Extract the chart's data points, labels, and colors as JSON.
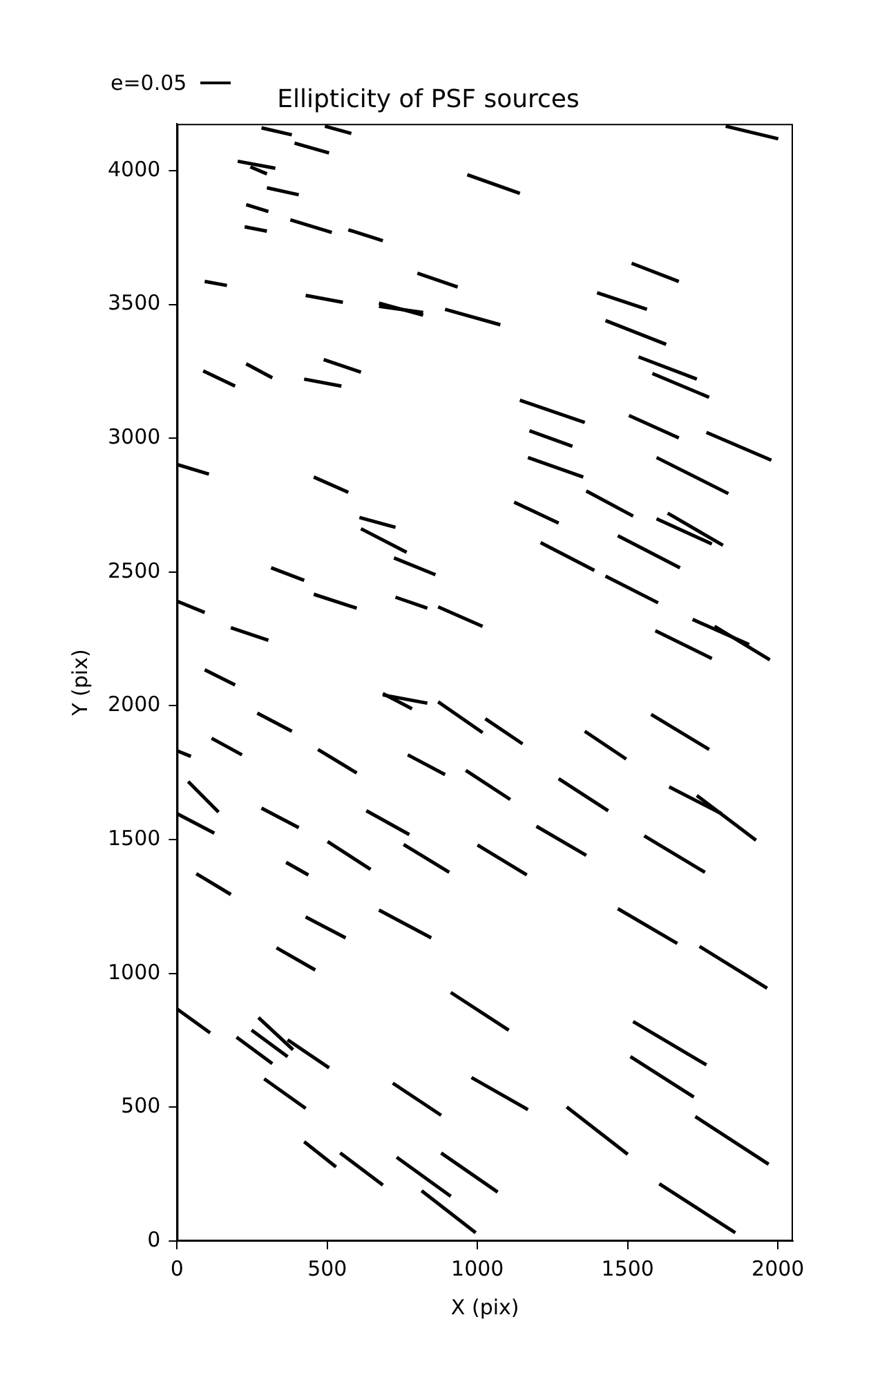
{
  "chart_data": {
    "type": "line",
    "title": "Ellipticity of PSF sources",
    "xlabel": "X (pix)",
    "ylabel": "Y (pix)",
    "annotations": [
      "e=0.05"
    ],
    "xlim": [
      0,
      2050
    ],
    "ylim": [
      0,
      4175
    ],
    "xticks": [
      0,
      500,
      1000,
      1500,
      2000
    ],
    "yticks": [
      0,
      500,
      1000,
      1500,
      2000,
      2500,
      3000,
      3500,
      4000
    ],
    "grid": false,
    "marker": "none",
    "line_style": "solid",
    "series": [
      {
        "color": "#000000",
        "x": [
          281,
          382
        ],
        "values": [
          4160,
          4134
        ]
      },
      {
        "color": "#000000",
        "x": [
          492,
          580
        ],
        "values": [
          4166,
          4139
        ]
      },
      {
        "color": "#000000",
        "x": [
          391,
          506
        ],
        "values": [
          4103,
          4066
        ]
      },
      {
        "color": "#000000",
        "x": [
          202,
          327
        ],
        "values": [
          4035,
          4009
        ]
      },
      {
        "color": "#000000",
        "x": [
          244,
          299
        ],
        "values": [
          4014,
          3988
        ]
      },
      {
        "color": "#000000",
        "x": [
          299,
          405
        ],
        "values": [
          3936,
          3910
        ]
      },
      {
        "color": "#000000",
        "x": [
          230,
          304
        ],
        "values": [
          3873,
          3847
        ]
      },
      {
        "color": "#000000",
        "x": [
          225,
          299
        ],
        "values": [
          3790,
          3774
        ]
      },
      {
        "color": "#000000",
        "x": [
          377,
          515
        ],
        "values": [
          3816,
          3769
        ]
      },
      {
        "color": "#000000",
        "x": [
          570,
          685
        ],
        "values": [
          3779,
          3738
        ]
      },
      {
        "color": "#000000",
        "x": [
          966,
          1141
        ],
        "values": [
          3985,
          3915
        ]
      },
      {
        "color": "#000000",
        "x": [
          1826,
          2001
        ],
        "values": [
          4166,
          4119
        ]
      },
      {
        "color": "#000000",
        "x": [
          92,
          166
        ],
        "values": [
          3586,
          3571
        ]
      },
      {
        "color": "#000000",
        "x": [
          800,
          934
        ],
        "values": [
          3617,
          3565
        ]
      },
      {
        "color": "#000000",
        "x": [
          428,
          552
        ],
        "values": [
          3534,
          3508
        ]
      },
      {
        "color": "#000000",
        "x": [
          672,
          819
        ],
        "values": [
          3505,
          3460
        ]
      },
      {
        "color": "#000000",
        "x": [
          672,
          819
        ],
        "values": [
          3493,
          3470
        ]
      },
      {
        "color": "#000000",
        "x": [
          892,
          1076
        ],
        "values": [
          3482,
          3424
        ]
      },
      {
        "color": "#000000",
        "x": [
          1513,
          1670
        ],
        "values": [
          3654,
          3586
        ]
      },
      {
        "color": "#000000",
        "x": [
          1398,
          1564
        ],
        "values": [
          3544,
          3482
        ]
      },
      {
        "color": "#000000",
        "x": [
          1426,
          1628
        ],
        "values": [
          3440,
          3351
        ]
      },
      {
        "color": "#000000",
        "x": [
          1536,
          1730
        ],
        "values": [
          3304,
          3221
        ]
      },
      {
        "color": "#000000",
        "x": [
          1582,
          1771
        ],
        "values": [
          3242,
          3153
        ]
      },
      {
        "color": "#000000",
        "x": [
          87,
          193
        ],
        "values": [
          3252,
          3195
        ]
      },
      {
        "color": "#000000",
        "x": [
          230,
          317
        ],
        "values": [
          3278,
          3226
        ]
      },
      {
        "color": "#000000",
        "x": [
          423,
          547
        ],
        "values": [
          3221,
          3195
        ]
      },
      {
        "color": "#000000",
        "x": [
          488,
          612
        ],
        "values": [
          3294,
          3247
        ]
      },
      {
        "color": "#000000",
        "x": [
          1141,
          1357
        ],
        "values": [
          3142,
          3059
        ]
      },
      {
        "color": "#000000",
        "x": [
          1173,
          1316
        ],
        "values": [
          3028,
          2970
        ]
      },
      {
        "color": "#000000",
        "x": [
          1504,
          1670
        ],
        "values": [
          3085,
          3001
        ]
      },
      {
        "color": "#000000",
        "x": [
          1762,
          1978
        ],
        "values": [
          3022,
          2918
        ]
      },
      {
        "color": "#000000",
        "x": [
          1168,
          1352
        ],
        "values": [
          2928,
          2855
        ]
      },
      {
        "color": "#000000",
        "x": [
          1596,
          1835
        ],
        "values": [
          2928,
          2793
        ]
      },
      {
        "color": "#000000",
        "x": [
          0,
          106
        ],
        "values": [
          2902,
          2866
        ]
      },
      {
        "color": "#000000",
        "x": [
          455,
          570
        ],
        "values": [
          2855,
          2798
        ]
      },
      {
        "color": "#000000",
        "x": [
          607,
          727
        ],
        "values": [
          2704,
          2667
        ]
      },
      {
        "color": "#000000",
        "x": [
          612,
          764
        ],
        "values": [
          2662,
          2574
        ]
      },
      {
        "color": "#000000",
        "x": [
          722,
          860
        ],
        "values": [
          2553,
          2490
        ]
      },
      {
        "color": "#000000",
        "x": [
          1122,
          1270
        ],
        "values": [
          2761,
          2683
        ]
      },
      {
        "color": "#000000",
        "x": [
          1362,
          1518
        ],
        "values": [
          2803,
          2709
        ]
      },
      {
        "color": "#000000",
        "x": [
          1596,
          1780
        ],
        "values": [
          2699,
          2605
        ]
      },
      {
        "color": "#000000",
        "x": [
          1633,
          1817
        ],
        "values": [
          2720,
          2600
        ]
      },
      {
        "color": "#000000",
        "x": [
          313,
          423
        ],
        "values": [
          2516,
          2469
        ]
      },
      {
        "color": "#000000",
        "x": [
          455,
          598
        ],
        "values": [
          2417,
          2365
        ]
      },
      {
        "color": "#000000",
        "x": [
          727,
          833
        ],
        "values": [
          2406,
          2365
        ]
      },
      {
        "color": "#000000",
        "x": [
          869,
          1017
        ],
        "values": [
          2370,
          2297
        ]
      },
      {
        "color": "#000000",
        "x": [
          1210,
          1389
        ],
        "values": [
          2610,
          2506
        ]
      },
      {
        "color": "#000000",
        "x": [
          1467,
          1674
        ],
        "values": [
          2636,
          2516
        ]
      },
      {
        "color": "#000000",
        "x": [
          1426,
          1601
        ],
        "values": [
          2485,
          2385
        ]
      },
      {
        "color": "#000000",
        "x": [
          0,
          92
        ],
        "values": [
          2391,
          2349
        ]
      },
      {
        "color": "#000000",
        "x": [
          179,
          304
        ],
        "values": [
          2292,
          2245
        ]
      },
      {
        "color": "#000000",
        "x": [
          1592,
          1780
        ],
        "values": [
          2281,
          2177
        ]
      },
      {
        "color": "#000000",
        "x": [
          1716,
          1904
        ],
        "values": [
          2323,
          2229
        ]
      },
      {
        "color": "#000000",
        "x": [
          1789,
          1973
        ],
        "values": [
          2297,
          2172
        ]
      },
      {
        "color": "#000000",
        "x": [
          92,
          193
        ],
        "values": [
          2135,
          2078
        ]
      },
      {
        "color": "#000000",
        "x": [
          685,
          782
        ],
        "values": [
          2046,
          1989
        ]
      },
      {
        "color": "#000000",
        "x": [
          685,
          833
        ],
        "values": [
          2041,
          2010
        ]
      },
      {
        "color": "#000000",
        "x": [
          869,
          1017
        ],
        "values": [
          2015,
          1900
        ]
      },
      {
        "color": "#000000",
        "x": [
          1026,
          1150
        ],
        "values": [
          1952,
          1858
        ]
      },
      {
        "color": "#000000",
        "x": [
          1357,
          1495
        ],
        "values": [
          1905,
          1801
        ]
      },
      {
        "color": "#000000",
        "x": [
          1578,
          1771
        ],
        "values": [
          1968,
          1837
        ]
      },
      {
        "color": "#000000",
        "x": [
          267,
          382
        ],
        "values": [
          1973,
          1905
        ]
      },
      {
        "color": "#000000",
        "x": [
          0,
          46
        ],
        "values": [
          1832,
          1811
        ]
      },
      {
        "color": "#000000",
        "x": [
          115,
          216
        ],
        "values": [
          1879,
          1817
        ]
      },
      {
        "color": "#000000",
        "x": [
          469,
          598
        ],
        "values": [
          1837,
          1749
        ]
      },
      {
        "color": "#000000",
        "x": [
          768,
          892
        ],
        "values": [
          1817,
          1743
        ]
      },
      {
        "color": "#000000",
        "x": [
          961,
          1109
        ],
        "values": [
          1759,
          1650
        ]
      },
      {
        "color": "#000000",
        "x": [
          1270,
          1435
        ],
        "values": [
          1728,
          1608
        ]
      },
      {
        "color": "#000000",
        "x": [
          1638,
          1812
        ],
        "values": [
          1697,
          1597
        ]
      },
      {
        "color": "#000000",
        "x": [
          1730,
          1927
        ],
        "values": [
          1665,
          1498
        ]
      },
      {
        "color": "#000000",
        "x": [
          37,
          138
        ],
        "values": [
          1717,
          1603
        ]
      },
      {
        "color": "#000000",
        "x": [
          0,
          124
        ],
        "values": [
          1597,
          1524
        ]
      },
      {
        "color": "#000000",
        "x": [
          281,
          405
        ],
        "values": [
          1618,
          1545
        ]
      },
      {
        "color": "#000000",
        "x": [
          630,
          773
        ],
        "values": [
          1608,
          1519
        ]
      },
      {
        "color": "#000000",
        "x": [
          501,
          644
        ],
        "values": [
          1493,
          1389
        ]
      },
      {
        "color": "#000000",
        "x": [
          754,
          906
        ],
        "values": [
          1482,
          1378
        ]
      },
      {
        "color": "#000000",
        "x": [
          1000,
          1164
        ],
        "values": [
          1480,
          1368
        ]
      },
      {
        "color": "#000000",
        "x": [
          1196,
          1362
        ],
        "values": [
          1550,
          1441
        ]
      },
      {
        "color": "#000000",
        "x": [
          1555,
          1757
        ],
        "values": [
          1514,
          1378
        ]
      },
      {
        "color": "#000000",
        "x": [
          363,
          437
        ],
        "values": [
          1415,
          1368
        ]
      },
      {
        "color": "#000000",
        "x": [
          64,
          179
        ],
        "values": [
          1373,
          1295
        ]
      },
      {
        "color": "#000000",
        "x": [
          428,
          561
        ],
        "values": [
          1211,
          1133
        ]
      },
      {
        "color": "#000000",
        "x": [
          672,
          846
        ],
        "values": [
          1237,
          1133
        ]
      },
      {
        "color": "#000000",
        "x": [
          331,
          460
        ],
        "values": [
          1096,
          1013
        ]
      },
      {
        "color": "#000000",
        "x": [
          1467,
          1665
        ],
        "values": [
          1242,
          1112
        ]
      },
      {
        "color": "#000000",
        "x": [
          1739,
          1964
        ],
        "values": [
          1101,
          945
        ]
      },
      {
        "color": "#000000",
        "x": [
          911,
          1104
        ],
        "values": [
          929,
          788
        ]
      },
      {
        "color": "#000000",
        "x": [
          0,
          110
        ],
        "values": [
          867,
          778
        ]
      },
      {
        "color": "#000000",
        "x": [
          271,
          386
        ],
        "values": [
          835,
          715
        ]
      },
      {
        "color": "#000000",
        "x": [
          248,
          368
        ],
        "values": [
          788,
          689
        ]
      },
      {
        "color": "#000000",
        "x": [
          198,
          317
        ],
        "values": [
          762,
          663
        ]
      },
      {
        "color": "#000000",
        "x": [
          368,
          506
        ],
        "values": [
          752,
          647
        ]
      },
      {
        "color": "#000000",
        "x": [
          290,
          428
        ],
        "values": [
          606,
          496
        ]
      },
      {
        "color": "#000000",
        "x": [
          718,
          879
        ],
        "values": [
          590,
          470
        ]
      },
      {
        "color": "#000000",
        "x": [
          980,
          1168
        ],
        "values": [
          611,
          491
        ]
      },
      {
        "color": "#000000",
        "x": [
          1518,
          1762
        ],
        "values": [
          820,
          658
        ]
      },
      {
        "color": "#000000",
        "x": [
          1509,
          1720
        ],
        "values": [
          689,
          538
        ]
      },
      {
        "color": "#000000",
        "x": [
          423,
          529
        ],
        "values": [
          371,
          277
        ]
      },
      {
        "color": "#000000",
        "x": [
          543,
          685
        ],
        "values": [
          329,
          209
        ]
      },
      {
        "color": "#000000",
        "x": [
          731,
          911
        ],
        "values": [
          313,
          167
        ]
      },
      {
        "color": "#000000",
        "x": [
          879,
          1067
        ],
        "values": [
          329,
          183
        ]
      },
      {
        "color": "#000000",
        "x": [
          814,
          994
        ],
        "values": [
          188,
          31
        ]
      },
      {
        "color": "#000000",
        "x": [
          1297,
          1500
        ],
        "values": [
          501,
          324
        ]
      },
      {
        "color": "#000000",
        "x": [
          1725,
          1969
        ],
        "values": [
          465,
          287
        ]
      },
      {
        "color": "#000000",
        "x": [
          1605,
          1858
        ],
        "values": [
          214,
          31
        ]
      }
    ]
  }
}
